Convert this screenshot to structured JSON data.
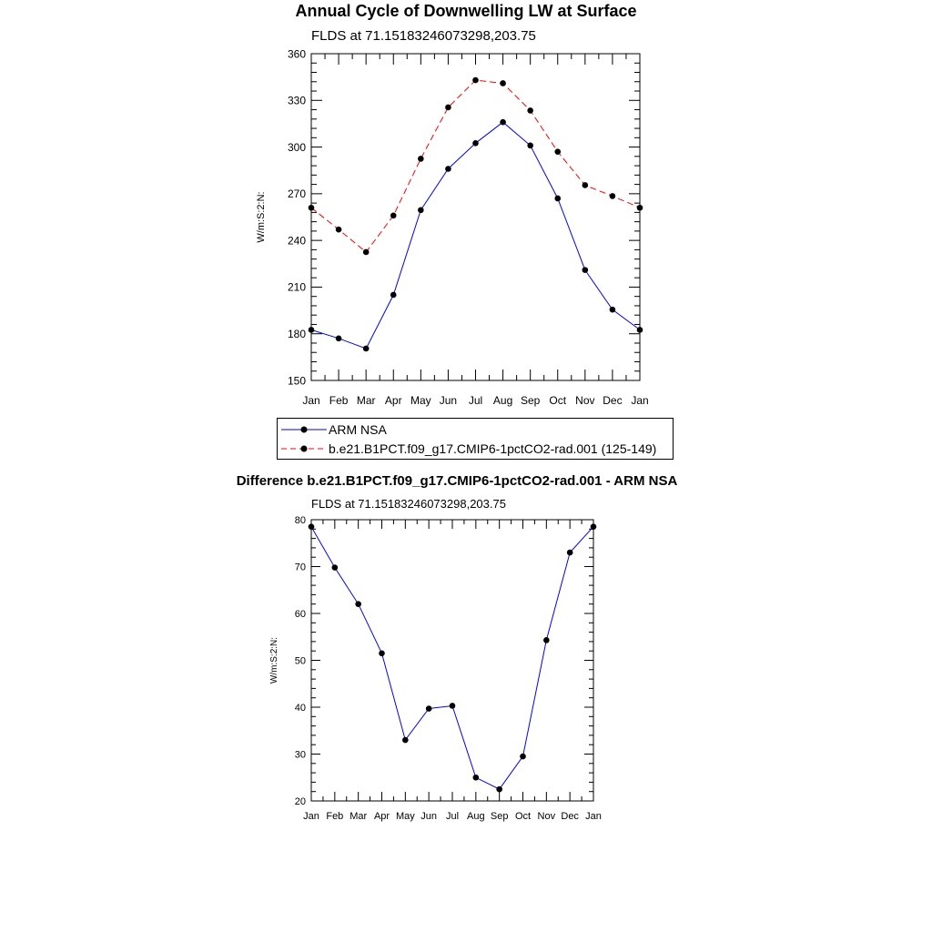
{
  "chart_data": [
    {
      "type": "line",
      "title": "Annual Cycle of Downwelling LW at Surface",
      "subtitle": "FLDS at 71.15183246073298,203.75",
      "ylabel": "W/m:S:2:N:",
      "xlabel": "",
      "categories": [
        "Jan",
        "Feb",
        "Mar",
        "Apr",
        "May",
        "Jun",
        "Jul",
        "Aug",
        "Sep",
        "Oct",
        "Nov",
        "Dec",
        "Jan"
      ],
      "ylim": [
        150,
        360
      ],
      "yticks": [
        150,
        180,
        210,
        240,
        270,
        300,
        330,
        360
      ],
      "grid": false,
      "legend_position": "bottom",
      "series": [
        {
          "name": "ARM NSA",
          "color": "#0000ff",
          "style": "solid",
          "values": [
            182.5,
            177.0,
            170.5,
            205.0,
            259.5,
            286.0,
            302.5,
            316.0,
            301.0,
            267.0,
            221.0,
            195.5,
            182.5
          ]
        },
        {
          "name": "b.e21.B1PCT.f09_g17.CMIP6-1pctCO2-rad.001 (125-149)",
          "color": "#ff0000",
          "style": "dashed",
          "values": [
            261.0,
            247.0,
            232.5,
            256.0,
            292.5,
            325.5,
            343.0,
            341.0,
            323.5,
            297.0,
            275.5,
            268.5,
            261.0
          ]
        }
      ]
    },
    {
      "type": "line",
      "title": "Difference b.e21.B1PCT.f09_g17.CMIP6-1pctCO2-rad.001 - ARM NSA",
      "subtitle": "FLDS at 71.15183246073298,203.75",
      "ylabel": "W/m:S:2:N:",
      "xlabel": "",
      "categories": [
        "Jan",
        "Feb",
        "Mar",
        "Apr",
        "May",
        "Jun",
        "Jul",
        "Aug",
        "Sep",
        "Oct",
        "Nov",
        "Dec",
        "Jan"
      ],
      "ylim": [
        20,
        80
      ],
      "yticks": [
        20,
        30,
        40,
        50,
        60,
        70,
        80
      ],
      "grid": false,
      "series": [
        {
          "color": "#0000ff",
          "style": "solid",
          "values": [
            78.5,
            69.8,
            62.0,
            51.5,
            33.0,
            39.7,
            40.3,
            25.0,
            22.5,
            29.5,
            54.3,
            73.0,
            78.5
          ]
        }
      ]
    }
  ]
}
